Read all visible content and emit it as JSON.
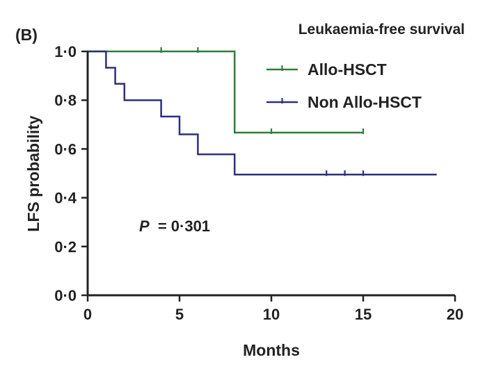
{
  "panel_label": "(B)",
  "chart_data": {
    "type": "line",
    "subtype": "kaplan-meier",
    "title": "Leukaemia-free survival",
    "xlabel": "Months",
    "ylabel": "LFS probability",
    "xlim": [
      0,
      20
    ],
    "ylim": [
      0,
      1
    ],
    "x_ticks": [
      0,
      5,
      10,
      15,
      20
    ],
    "x_tick_labels": [
      "0",
      "5",
      "10",
      "15",
      "20"
    ],
    "y_ticks": [
      0,
      0.2,
      0.4,
      0.6,
      0.8,
      1.0
    ],
    "y_tick_labels": [
      "0·0",
      "0·2",
      "0·4",
      "0·6",
      "0·8",
      "1·0"
    ],
    "grid": false,
    "legend_position": "top-right",
    "annotation": {
      "p_symbol": "P",
      "p_text": "= 0·301"
    },
    "series": [
      {
        "name": "Allo-HSCT",
        "color": "#2e7d3b",
        "steps": [
          [
            0,
            1.0
          ],
          [
            8,
            0.667
          ],
          [
            15,
            0.667
          ]
        ],
        "censored": [
          [
            4,
            1.0
          ],
          [
            6,
            1.0
          ],
          [
            10,
            0.667
          ],
          [
            15,
            0.667
          ]
        ]
      },
      {
        "name": "Non Allo-HSCT",
        "color": "#2e2e7e",
        "steps": [
          [
            0,
            1.0
          ],
          [
            1,
            0.933
          ],
          [
            1.5,
            0.867
          ],
          [
            2,
            0.8
          ],
          [
            4,
            0.733
          ],
          [
            5,
            0.66
          ],
          [
            6,
            0.578
          ],
          [
            8,
            0.495
          ],
          [
            19,
            0.495
          ]
        ],
        "censored": [
          [
            13,
            0.495
          ],
          [
            14,
            0.495
          ],
          [
            15,
            0.495
          ]
        ]
      }
    ]
  }
}
